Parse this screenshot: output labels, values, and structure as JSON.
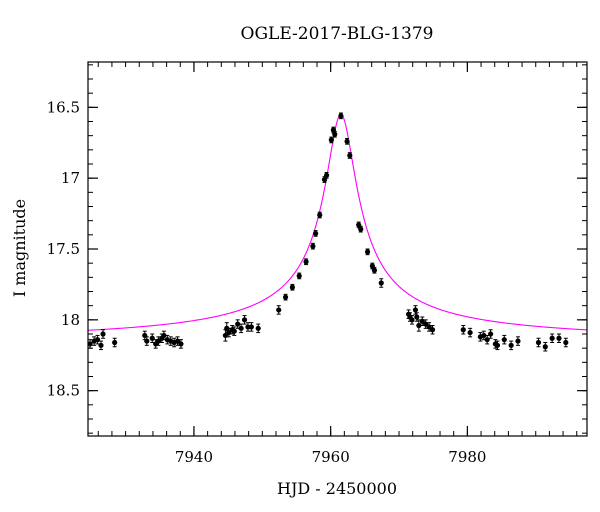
{
  "chart_data": {
    "type": "scatter",
    "title": "OGLE-2017-BLG-1379",
    "xlabel": "HJD - 2450000",
    "ylabel": "I magnitude",
    "xlim": [
      7924.5,
      7997.5
    ],
    "ylim": [
      18.82,
      16.18
    ],
    "y_inverted": true,
    "x_ticks": [
      7940,
      7960,
      7980
    ],
    "y_ticks": [
      16.5,
      17,
      17.5,
      18,
      18.5
    ],
    "x_tick_labels": [
      "7940",
      "7960",
      "7980"
    ],
    "y_tick_labels": [
      "16.5",
      "17",
      "17.5",
      "18",
      "18.5"
    ],
    "x_minor_step": 2,
    "y_minor_step": 0.1,
    "grid": false,
    "model_color": "#ff00ff",
    "point_color": "#000000",
    "model": {
      "name": "",
      "peak_time": 7961.5,
      "baseline_mag": 18.17,
      "amplification_mag": 1.62,
      "timescale": 2.2
    },
    "series": [
      {
        "name": "",
        "points": [
          [
            7924.8,
            18.17
          ],
          [
            7925.4,
            18.15
          ],
          [
            7925.9,
            18.14
          ],
          [
            7926.4,
            18.18
          ],
          [
            7926.7,
            18.1
          ],
          [
            7928.4,
            18.16
          ],
          [
            7932.8,
            18.11
          ],
          [
            7933.1,
            18.15
          ],
          [
            7933.9,
            18.13
          ],
          [
            7934.4,
            18.17
          ],
          [
            7934.8,
            18.15
          ],
          [
            7935.3,
            18.13
          ],
          [
            7935.6,
            18.11
          ],
          [
            7936.1,
            18.14
          ],
          [
            7936.6,
            18.15
          ],
          [
            7937.1,
            18.16
          ],
          [
            7937.6,
            18.15
          ],
          [
            7938.1,
            18.17
          ],
          [
            7944.6,
            18.11
          ],
          [
            7944.8,
            18.06
          ],
          [
            7945.1,
            18.09
          ],
          [
            7945.6,
            18.07
          ],
          [
            7945.9,
            18.08
          ],
          [
            7946.4,
            18.03
          ],
          [
            7946.9,
            18.06
          ],
          [
            7947.4,
            18.0
          ],
          [
            7947.9,
            18.05
          ],
          [
            7948.4,
            18.05
          ],
          [
            7949.4,
            18.06
          ],
          [
            7952.4,
            17.93
          ],
          [
            7953.4,
            17.84
          ],
          [
            7954.4,
            17.77
          ],
          [
            7955.4,
            17.69
          ],
          [
            7956.4,
            17.59
          ],
          [
            7957.4,
            17.48
          ],
          [
            7957.8,
            17.39
          ],
          [
            7958.4,
            17.26
          ],
          [
            7959.1,
            17.01
          ],
          [
            7959.4,
            16.98
          ],
          [
            7960.1,
            16.73
          ],
          [
            7960.4,
            16.66
          ],
          [
            7960.6,
            16.69
          ],
          [
            7961.5,
            16.56
          ],
          [
            7962.4,
            16.74
          ],
          [
            7962.8,
            16.84
          ],
          [
            7964.1,
            17.33
          ],
          [
            7964.4,
            17.36
          ],
          [
            7965.4,
            17.52
          ],
          [
            7966.1,
            17.62
          ],
          [
            7966.4,
            17.65
          ],
          [
            7967.4,
            17.74
          ],
          [
            7971.4,
            17.96
          ],
          [
            7971.6,
            17.98
          ],
          [
            7971.9,
            18.0
          ],
          [
            7972.4,
            17.93
          ],
          [
            7972.6,
            17.98
          ],
          [
            7972.9,
            18.04
          ],
          [
            7973.4,
            18.01
          ],
          [
            7973.9,
            18.03
          ],
          [
            7974.4,
            18.05
          ],
          [
            7974.9,
            18.07
          ],
          [
            7979.4,
            18.07
          ],
          [
            7980.4,
            18.09
          ],
          [
            7981.9,
            18.12
          ],
          [
            7982.4,
            18.11
          ],
          [
            7982.9,
            18.14
          ],
          [
            7983.4,
            18.1
          ],
          [
            7984.1,
            18.17
          ],
          [
            7984.4,
            18.18
          ],
          [
            7985.4,
            18.14
          ],
          [
            7986.4,
            18.18
          ],
          [
            7987.4,
            18.15
          ],
          [
            7990.4,
            18.16
          ],
          [
            7991.4,
            18.19
          ],
          [
            7992.4,
            18.13
          ],
          [
            7993.4,
            18.13
          ],
          [
            7994.4,
            18.16
          ]
        ],
        "errors": [
          0.03,
          0.03,
          0.03,
          0.03,
          0.03,
          0.03,
          0.03,
          0.03,
          0.03,
          0.03,
          0.03,
          0.03,
          0.03,
          0.03,
          0.03,
          0.03,
          0.03,
          0.03,
          0.04,
          0.04,
          0.03,
          0.03,
          0.03,
          0.03,
          0.03,
          0.03,
          0.03,
          0.03,
          0.03,
          0.03,
          0.02,
          0.02,
          0.02,
          0.02,
          0.02,
          0.02,
          0.02,
          0.02,
          0.02,
          0.02,
          0.02,
          0.02,
          0.02,
          0.02,
          0.02,
          0.02,
          0.02,
          0.02,
          0.02,
          0.02,
          0.03,
          0.03,
          0.03,
          0.03,
          0.03,
          0.03,
          0.04,
          0.03,
          0.03,
          0.03,
          0.03,
          0.03,
          0.03,
          0.03,
          0.03,
          0.03,
          0.03,
          0.03,
          0.03,
          0.03,
          0.03,
          0.03,
          0.03,
          0.03,
          0.03,
          0.03,
          0.03
        ]
      }
    ]
  }
}
